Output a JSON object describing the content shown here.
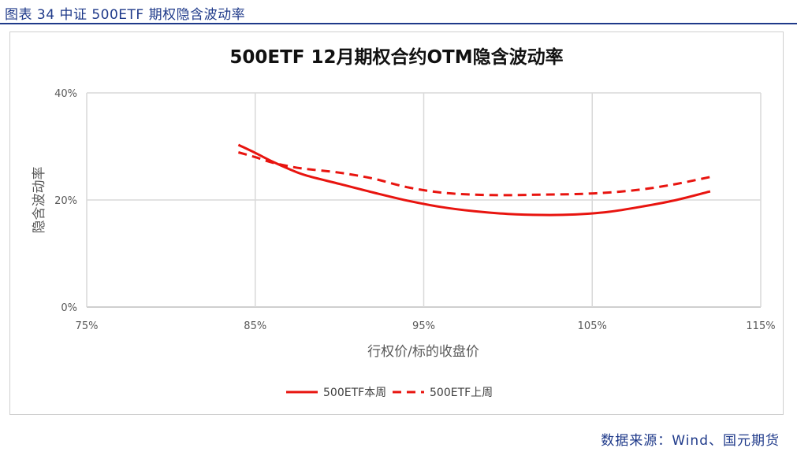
{
  "figure_caption": "图表 34  中证 500ETF 期权隐含波动率",
  "source": {
    "label": "数据来源：",
    "value": "Wind、国元期货"
  },
  "colors": {
    "caption": "#1f3a8a",
    "series": "#e8140f",
    "grid": "#d9d9d9",
    "axis_text": "#595959"
  },
  "chart_data": {
    "type": "line",
    "title": "500ETF 12月期权合约OTM隐含波动率",
    "xlabel": "行权价/标的收盘价",
    "ylabel": "隐含波动率",
    "xlim": [
      75,
      115
    ],
    "ylim": [
      0,
      40
    ],
    "x_ticks": [
      75,
      85,
      95,
      105,
      115
    ],
    "y_ticks": [
      0,
      20,
      40
    ],
    "x_tick_labels": [
      "75%",
      "85%",
      "95%",
      "105%",
      "115%"
    ],
    "y_tick_labels": [
      "0%",
      "20%",
      "40%"
    ],
    "grid": true,
    "legend_position": "bottom",
    "series": [
      {
        "name": "500ETF本周",
        "style": "solid",
        "x": [
          84,
          85,
          86,
          87,
          88,
          90,
          92,
          94,
          96,
          98,
          100,
          102,
          104,
          106,
          108,
          110,
          112
        ],
        "y": [
          30.3,
          28.8,
          27.2,
          25.8,
          24.6,
          23.0,
          21.4,
          19.9,
          18.7,
          17.9,
          17.4,
          17.2,
          17.3,
          17.8,
          18.8,
          20.0,
          21.6
        ]
      },
      {
        "name": "500ETF上周",
        "style": "dashed",
        "x": [
          84,
          85,
          86,
          87,
          88,
          90,
          92,
          94,
          96,
          98,
          100,
          102,
          104,
          106,
          108,
          110,
          112
        ],
        "y": [
          28.9,
          28.0,
          27.0,
          26.3,
          25.8,
          25.1,
          24.0,
          22.4,
          21.4,
          21.0,
          20.9,
          21.0,
          21.1,
          21.4,
          22.0,
          23.0,
          24.3
        ]
      }
    ]
  }
}
